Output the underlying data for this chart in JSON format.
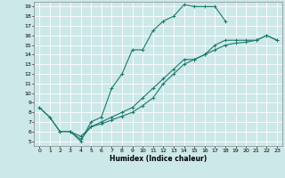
{
  "xlabel": "Humidex (Indice chaleur)",
  "bg_color": "#cde8e8",
  "grid_color": "#ffffff",
  "line_color": "#1a7a6e",
  "xlim": [
    -0.5,
    23.5
  ],
  "ylim": [
    4.5,
    19.5
  ],
  "xticks": [
    0,
    1,
    2,
    3,
    4,
    5,
    6,
    7,
    8,
    9,
    10,
    11,
    12,
    13,
    14,
    15,
    16,
    17,
    18,
    19,
    20,
    21,
    22,
    23
  ],
  "yticks": [
    5,
    6,
    7,
    8,
    9,
    10,
    11,
    12,
    13,
    14,
    15,
    16,
    17,
    18,
    19
  ],
  "curve1_x": [
    0,
    1,
    2,
    3,
    4,
    5,
    6,
    7,
    8,
    9,
    10,
    11,
    12,
    13,
    14,
    15,
    16,
    17,
    18
  ],
  "curve1_y": [
    8.5,
    7.5,
    6.0,
    6.0,
    5.0,
    7.0,
    7.5,
    10.5,
    12.0,
    14.5,
    14.5,
    16.5,
    17.5,
    18.0,
    19.2,
    19.0,
    19.0,
    19.0,
    17.5
  ],
  "curve2_x": [
    0,
    1,
    2,
    3,
    4,
    5,
    6,
    7,
    8,
    9,
    10,
    11,
    12,
    13,
    14,
    15,
    16,
    17,
    18,
    19,
    20,
    21,
    22,
    23
  ],
  "curve2_y": [
    8.5,
    7.5,
    6.0,
    6.0,
    5.5,
    6.5,
    7.0,
    7.5,
    8.0,
    8.5,
    9.5,
    10.5,
    11.5,
    12.5,
    13.5,
    13.5,
    14.0,
    15.0,
    15.5,
    15.5,
    15.5,
    15.5,
    16.0,
    15.5
  ],
  "curve3_x": [
    3,
    4,
    5,
    6,
    7,
    8,
    9,
    10,
    11,
    12,
    13,
    14,
    15,
    16,
    17,
    18,
    19,
    20,
    21,
    22,
    23
  ],
  "curve3_y": [
    6.0,
    5.2,
    6.5,
    6.8,
    7.2,
    7.6,
    8.0,
    8.7,
    9.5,
    11.0,
    12.0,
    13.0,
    13.5,
    14.0,
    14.5,
    15.0,
    15.2,
    15.3,
    15.5,
    16.0,
    15.5
  ]
}
